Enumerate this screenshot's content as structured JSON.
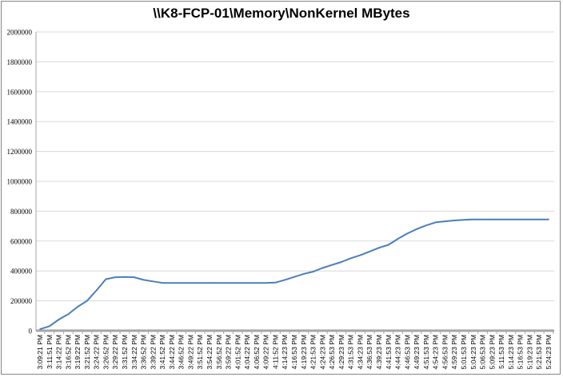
{
  "chart_data": {
    "type": "line",
    "title": "\\\\K8-FCP-01\\Memory\\NonKernel MBytes",
    "xlabel": "",
    "ylabel": "",
    "ylim": [
      0,
      2000000
    ],
    "yticks": [
      0,
      200000,
      400000,
      600000,
      800000,
      1000000,
      1200000,
      1400000,
      1600000,
      1800000,
      2000000
    ],
    "grid": true,
    "legend": "none",
    "series_color": "#4a7ebb",
    "categories": [
      "3:09:21 PM",
      "3:11:51 PM",
      "3:14:22 PM",
      "3:16:52 PM",
      "3:19:22 PM",
      "3:21:52 PM",
      "3:24:22 PM",
      "3:26:52 PM",
      "3:29:22 PM",
      "3:31:52 PM",
      "3:34:22 PM",
      "3:36:52 PM",
      "3:39:22 PM",
      "3:41:52 PM",
      "3:44:22 PM",
      "3:46:52 PM",
      "3:49:22 PM",
      "3:51:52 PM",
      "3:54:22 PM",
      "3:56:52 PM",
      "3:59:22 PM",
      "4:01:52 PM",
      "4:04:22 PM",
      "4:06:52 PM",
      "4:09:22 PM",
      "4:11:52 PM",
      "4:14:23 PM",
      "4:16:53 PM",
      "4:19:23 PM",
      "4:21:53 PM",
      "4:24:23 PM",
      "4:26:53 PM",
      "4:29:23 PM",
      "4:31:53 PM",
      "4:34:23 PM",
      "4:36:53 PM",
      "4:39:23 PM",
      "4:41:53 PM",
      "4:44:23 PM",
      "4:46:53 PM",
      "4:49:23 PM",
      "4:51:53 PM",
      "4:54:23 PM",
      "4:56:53 PM",
      "4:59:23 PM",
      "5:01:53 PM",
      "5:04:23 PM",
      "5:06:53 PM",
      "5:09:23 PM",
      "5:11:53 PM",
      "5:14:23 PM",
      "5:16:53 PM",
      "5:19:23 PM",
      "5:21:53 PM",
      "5:24:23 PM"
    ],
    "series": [
      {
        "name": "NonKernel MBytes",
        "values": [
          10000,
          30000,
          75000,
          110000,
          160000,
          200000,
          270000,
          345000,
          358000,
          360000,
          358000,
          340000,
          330000,
          320000,
          320000,
          320000,
          320000,
          320000,
          320000,
          320000,
          320000,
          320000,
          320000,
          320000,
          320000,
          322000,
          340000,
          360000,
          380000,
          395000,
          420000,
          440000,
          460000,
          485000,
          505000,
          530000,
          555000,
          575000,
          615000,
          650000,
          680000,
          705000,
          725000,
          732000,
          738000,
          742000,
          745000,
          745000,
          745000,
          745000,
          745000,
          745000,
          745000,
          745000,
          745000
        ]
      }
    ]
  }
}
